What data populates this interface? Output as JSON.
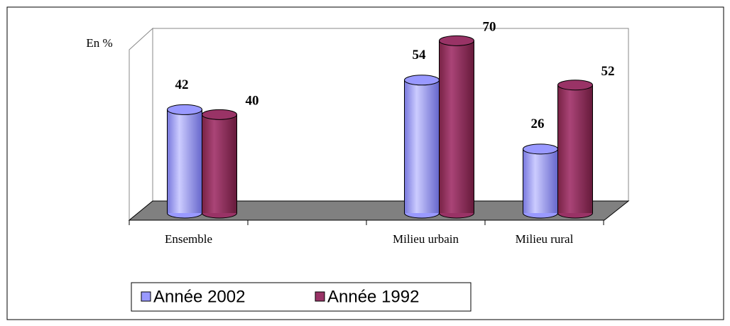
{
  "chart_data": {
    "type": "bar3d",
    "y_label": "En %",
    "categories": [
      "Ensemble",
      null,
      "Milieu urbain",
      "Milieu rural"
    ],
    "series": [
      {
        "name": "Année 2002",
        "color": "#9999ff",
        "values": [
          42,
          null,
          54,
          26
        ]
      },
      {
        "name": "Année 1992",
        "color": "#993366",
        "values": [
          40,
          null,
          70,
          52
        ]
      }
    ],
    "ylim": [
      0,
      75
    ]
  }
}
